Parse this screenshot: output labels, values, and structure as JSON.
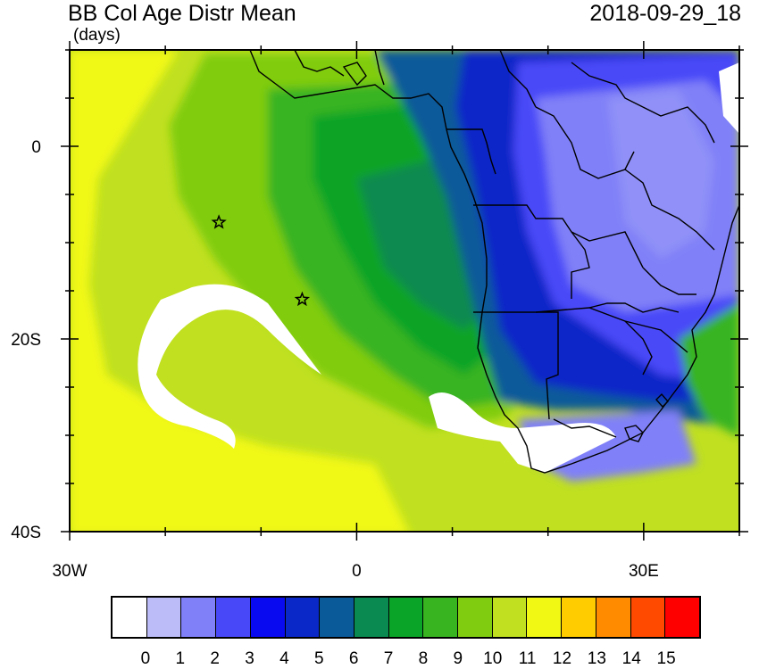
{
  "header": {
    "title": "BB Col Age Distr Mean",
    "units": "(days)",
    "datetime": "2018-09-29_18"
  },
  "map": {
    "lon_range": [
      -30,
      40
    ],
    "lat_range": [
      -40,
      10
    ],
    "x_tick_labels": [
      {
        "value": -30,
        "label": "30W"
      },
      {
        "value": 0,
        "label": "0"
      },
      {
        "value": 30,
        "label": "30E"
      }
    ],
    "y_tick_labels": [
      {
        "value": 0,
        "label": "0"
      },
      {
        "value": -20,
        "label": "20S"
      },
      {
        "value": -40,
        "label": "40S"
      }
    ],
    "markers": [
      {
        "name": "star",
        "lon": -14.4,
        "lat": -7.9
      },
      {
        "name": "star",
        "lon": -5.7,
        "lat": -15.9
      }
    ]
  },
  "colorbar": {
    "colors": [
      "#ffffff",
      "#bcbcf8",
      "#8080f8",
      "#4848f8",
      "#0a0af0",
      "#0a28c8",
      "#0a5a9a",
      "#0a8a50",
      "#0aa428",
      "#38b420",
      "#80cc10",
      "#c0e020",
      "#f0f814",
      "#ffcc00",
      "#ff8c00",
      "#ff4a00",
      "#ff0000"
    ],
    "labels": [
      "0",
      "1",
      "2",
      "3",
      "4",
      "5",
      "6",
      "7",
      "8",
      "9",
      "10",
      "11",
      "12",
      "13",
      "14",
      "15"
    ]
  }
}
